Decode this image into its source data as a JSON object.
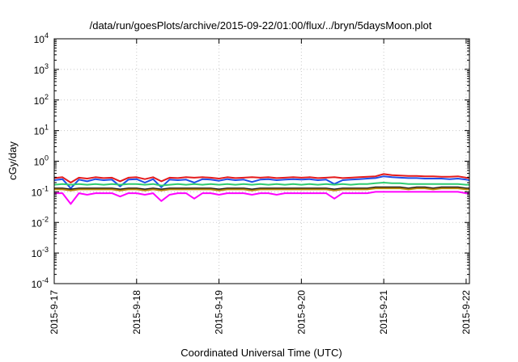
{
  "chart_data": {
    "type": "line",
    "title": "/data/run/goesPlots/archive/2015-09-22/01:00/flux/../bryn/5daysMoon.plot",
    "xlabel": "Coordinated Universal Time (UTC)",
    "ylabel": "cGy/day",
    "yscale": "log",
    "ylim": [
      0.0001,
      10000
    ],
    "xlim": [
      "2015-09-17",
      "2015-09-22 01:00"
    ],
    "y_ticks": [
      {
        "value": 0.0001,
        "base": "10",
        "exp": "-4"
      },
      {
        "value": 0.001,
        "base": "10",
        "exp": "-3"
      },
      {
        "value": 0.01,
        "base": "10",
        "exp": "-2"
      },
      {
        "value": 0.1,
        "base": "10",
        "exp": "-1"
      },
      {
        "value": 1,
        "base": "10",
        "exp": "0"
      },
      {
        "value": 10,
        "base": "10",
        "exp": "1"
      },
      {
        "value": 100,
        "base": "10",
        "exp": "2"
      },
      {
        "value": 1000,
        "base": "10",
        "exp": "3"
      },
      {
        "value": 10000,
        "base": "10",
        "exp": "4"
      }
    ],
    "x_ticks": [
      {
        "day": 0,
        "label": "2015-9-17"
      },
      {
        "day": 1,
        "label": "2015-9-18"
      },
      {
        "day": 2,
        "label": "2015-9-19"
      },
      {
        "day": 3,
        "label": "2015-9-20"
      },
      {
        "day": 4,
        "label": "2015-9-21"
      },
      {
        "day": 5,
        "label": "2015-9-22"
      }
    ],
    "grid": true,
    "legend": "none",
    "x_days": [
      0,
      0.1,
      0.2,
      0.3,
      0.4,
      0.5,
      0.6,
      0.7,
      0.8,
      0.9,
      1,
      1.1,
      1.2,
      1.3,
      1.4,
      1.5,
      1.6,
      1.7,
      1.8,
      1.9,
      2,
      2.1,
      2.2,
      2.3,
      2.4,
      2.5,
      2.6,
      2.7,
      2.8,
      2.9,
      3,
      3.1,
      3.2,
      3.3,
      3.4,
      3.5,
      3.6,
      3.7,
      3.8,
      3.9,
      4,
      4.1,
      4.2,
      4.3,
      4.4,
      4.5,
      4.6,
      4.7,
      4.8,
      4.9,
      5,
      5.04
    ],
    "series": [
      {
        "color": "#e41a1c",
        "values": [
          0.28,
          0.3,
          0.2,
          0.29,
          0.27,
          0.3,
          0.28,
          0.29,
          0.22,
          0.29,
          0.3,
          0.26,
          0.3,
          0.22,
          0.29,
          0.28,
          0.3,
          0.29,
          0.3,
          0.29,
          0.27,
          0.3,
          0.28,
          0.29,
          0.3,
          0.29,
          0.3,
          0.28,
          0.29,
          0.3,
          0.29,
          0.3,
          0.28,
          0.29,
          0.3,
          0.28,
          0.29,
          0.3,
          0.31,
          0.32,
          0.38,
          0.35,
          0.34,
          0.33,
          0.33,
          0.32,
          0.32,
          0.31,
          0.31,
          0.32,
          0.29,
          0.28
        ]
      },
      {
        "color": "#1f4fe8",
        "values": [
          0.24,
          0.26,
          0.13,
          0.25,
          0.22,
          0.26,
          0.24,
          0.25,
          0.15,
          0.25,
          0.26,
          0.2,
          0.26,
          0.14,
          0.25,
          0.24,
          0.25,
          0.2,
          0.26,
          0.25,
          0.23,
          0.26,
          0.24,
          0.25,
          0.21,
          0.25,
          0.26,
          0.24,
          0.25,
          0.26,
          0.25,
          0.26,
          0.24,
          0.25,
          0.18,
          0.24,
          0.25,
          0.26,
          0.27,
          0.28,
          0.32,
          0.3,
          0.29,
          0.28,
          0.28,
          0.27,
          0.27,
          0.27,
          0.26,
          0.27,
          0.25,
          0.24
        ]
      },
      {
        "color": "#2ecc71",
        "values": [
          0.17,
          0.18,
          0.17,
          0.18,
          0.17,
          0.18,
          0.17,
          0.18,
          0.17,
          0.18,
          0.18,
          0.17,
          0.18,
          0.16,
          0.17,
          0.18,
          0.17,
          0.18,
          0.17,
          0.18,
          0.17,
          0.18,
          0.17,
          0.18,
          0.17,
          0.18,
          0.17,
          0.18,
          0.17,
          0.18,
          0.17,
          0.18,
          0.17,
          0.18,
          0.17,
          0.18,
          0.17,
          0.18,
          0.18,
          0.19,
          0.2,
          0.19,
          0.19,
          0.18,
          0.18,
          0.18,
          0.18,
          0.18,
          0.18,
          0.18,
          0.17,
          0.17
        ]
      },
      {
        "color": "#1a1a1a",
        "values": [
          0.13,
          0.13,
          0.12,
          0.13,
          0.13,
          0.13,
          0.13,
          0.13,
          0.12,
          0.13,
          0.13,
          0.12,
          0.13,
          0.12,
          0.13,
          0.13,
          0.13,
          0.13,
          0.13,
          0.13,
          0.12,
          0.13,
          0.13,
          0.13,
          0.12,
          0.13,
          0.13,
          0.13,
          0.13,
          0.13,
          0.13,
          0.13,
          0.13,
          0.13,
          0.12,
          0.13,
          0.13,
          0.13,
          0.13,
          0.14,
          0.14,
          0.14,
          0.14,
          0.13,
          0.14,
          0.14,
          0.13,
          0.14,
          0.14,
          0.14,
          0.13,
          0.13
        ]
      },
      {
        "color": "#b8860b",
        "values": [
          0.12,
          0.12,
          0.11,
          0.12,
          0.12,
          0.12,
          0.12,
          0.12,
          0.11,
          0.12,
          0.12,
          0.11,
          0.12,
          0.11,
          0.12,
          0.12,
          0.12,
          0.12,
          0.12,
          0.12,
          0.11,
          0.12,
          0.12,
          0.12,
          0.11,
          0.12,
          0.12,
          0.12,
          0.12,
          0.12,
          0.12,
          0.12,
          0.12,
          0.12,
          0.11,
          0.12,
          0.12,
          0.12,
          0.12,
          0.13,
          0.13,
          0.13,
          0.13,
          0.12,
          0.13,
          0.13,
          0.12,
          0.13,
          0.13,
          0.13,
          0.12,
          0.12
        ]
      },
      {
        "color": "#ff00ff",
        "values": [
          0.09,
          0.09,
          0.04,
          0.09,
          0.08,
          0.09,
          0.09,
          0.09,
          0.07,
          0.09,
          0.09,
          0.08,
          0.09,
          0.05,
          0.08,
          0.09,
          0.09,
          0.06,
          0.09,
          0.09,
          0.08,
          0.09,
          0.09,
          0.09,
          0.08,
          0.09,
          0.09,
          0.08,
          0.09,
          0.09,
          0.09,
          0.09,
          0.09,
          0.09,
          0.06,
          0.09,
          0.09,
          0.09,
          0.09,
          0.1,
          0.1,
          0.1,
          0.1,
          0.1,
          0.1,
          0.1,
          0.1,
          0.1,
          0.1,
          0.1,
          0.09,
          0.09
        ]
      }
    ]
  }
}
